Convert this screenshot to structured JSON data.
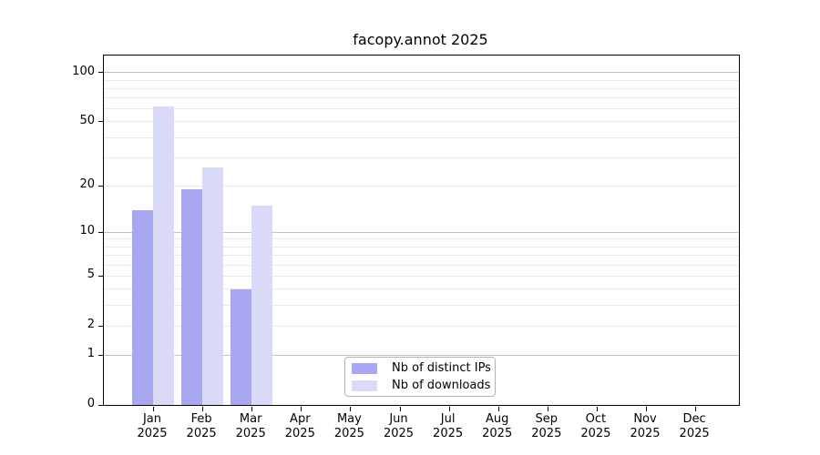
{
  "chart_data": {
    "type": "bar",
    "title": "facopy.annot 2025",
    "y_scale": "log10(1+v)",
    "x_months": [
      "Jan",
      "Feb",
      "Mar",
      "Apr",
      "May",
      "Jun",
      "Jul",
      "Aug",
      "Sep",
      "Oct",
      "Nov",
      "Dec"
    ],
    "x_year": "2025",
    "series": [
      {
        "name": "Nb of distinct IPs",
        "color": "#a7a7f2",
        "values": [
          14,
          19,
          4,
          0,
          0,
          0,
          0,
          0,
          0,
          0,
          0,
          0
        ]
      },
      {
        "name": "Nb of downloads",
        "color": "#d9d9f8",
        "values": [
          62,
          26,
          15,
          0,
          0,
          0,
          0,
          0,
          0,
          0,
          0,
          0
        ]
      }
    ],
    "y_ticks": [
      0,
      1,
      2,
      5,
      10,
      20,
      50,
      100
    ],
    "grid_major": [
      1,
      10,
      100
    ],
    "grid_minor": [
      2,
      3,
      4,
      5,
      6,
      7,
      8,
      9,
      20,
      30,
      40,
      50,
      60,
      70,
      80,
      90
    ],
    "y_max": 127,
    "grid": "on",
    "legend_position": "lower center"
  },
  "colors": {
    "grid_major": "#c3c3c3",
    "grid_minor": "#eaeaea",
    "frame": "#000000",
    "background": "#ffffff",
    "legend_border": "#b3b3b3"
  }
}
